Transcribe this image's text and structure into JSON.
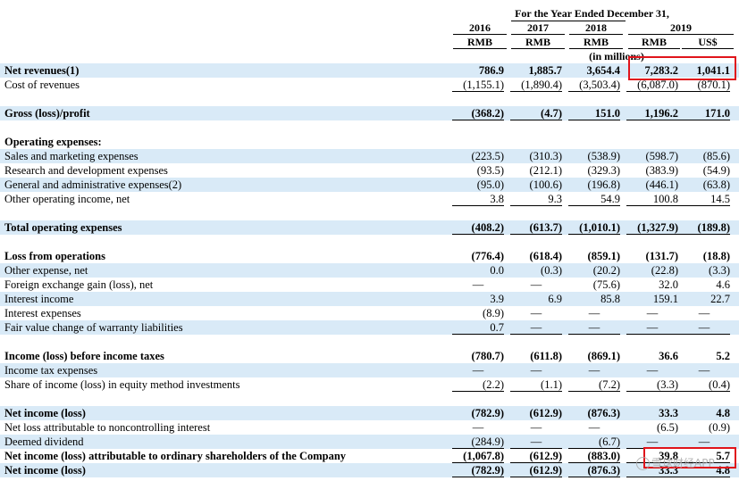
{
  "header": {
    "period_title": "For the Year Ended December 31,",
    "years": [
      "2016",
      "2017",
      "2018",
      "2019"
    ],
    "currencies": [
      "RMB",
      "RMB",
      "RMB",
      "RMB",
      "US$"
    ],
    "units": "(in millions)"
  },
  "rows": [
    {
      "label": "Net revenues(1)",
      "values": [
        "786.9",
        "1,885.7",
        "3,654.4",
        "7,283.2",
        "1,041.1"
      ],
      "bold": true,
      "shade": true,
      "underline": false
    },
    {
      "label": "Cost of revenues",
      "values": [
        "(1,155.1)",
        "(1,890.4)",
        "(3,503.4)",
        "(6,087.0)",
        "(870.1)"
      ],
      "bold": false,
      "shade": false,
      "underline": true
    },
    {
      "label": "Gross (loss)/profit",
      "values": [
        "(368.2)",
        "(4.7)",
        "151.0",
        "1,196.2",
        "171.0"
      ],
      "bold": true,
      "shade": true,
      "underline": true
    },
    {
      "label": "Operating expenses:",
      "values": [
        "",
        "",
        "",
        "",
        ""
      ],
      "bold": true,
      "shade": false,
      "underline": false
    },
    {
      "label": "Sales and marketing expenses",
      "values": [
        "(223.5)",
        "(310.3)",
        "(538.9)",
        "(598.7)",
        "(85.6)"
      ],
      "bold": false,
      "shade": true,
      "underline": false
    },
    {
      "label": "Research and development expenses",
      "values": [
        "(93.5)",
        "(212.1)",
        "(329.3)",
        "(383.9)",
        "(54.9)"
      ],
      "bold": false,
      "shade": false,
      "underline": false
    },
    {
      "label": "General and administrative expenses(2)",
      "values": [
        "(95.0)",
        "(100.6)",
        "(196.8)",
        "(446.1)",
        "(63.8)"
      ],
      "bold": false,
      "shade": true,
      "underline": false
    },
    {
      "label": "Other operating income, net",
      "values": [
        "3.8",
        "9.3",
        "54.9",
        "100.8",
        "14.5"
      ],
      "bold": false,
      "shade": false,
      "underline": true
    },
    {
      "label": "Total operating expenses",
      "values": [
        "(408.2)",
        "(613.7)",
        "(1,010.1)",
        "(1,327.9)",
        "(189.8)"
      ],
      "bold": true,
      "shade": true,
      "underline": true
    },
    {
      "label": "Loss from operations",
      "values": [
        "(776.4)",
        "(618.4)",
        "(859.1)",
        "(131.7)",
        "(18.8)"
      ],
      "bold": true,
      "shade": false,
      "underline": false
    },
    {
      "label": "Other expense, net",
      "values": [
        "0.0",
        "(0.3)",
        "(20.2)",
        "(22.8)",
        "(3.3)"
      ],
      "bold": false,
      "shade": true,
      "underline": false
    },
    {
      "label": "Foreign exchange gain (loss), net",
      "values": [
        "—",
        "—",
        "(75.6)",
        "32.0",
        "4.6"
      ],
      "bold": false,
      "shade": false,
      "underline": false
    },
    {
      "label": "Interest income",
      "values": [
        "3.9",
        "6.9",
        "85.8",
        "159.1",
        "22.7"
      ],
      "bold": false,
      "shade": true,
      "underline": false
    },
    {
      "label": "Interest expenses",
      "values": [
        "(8.9)",
        "—",
        "—",
        "—",
        "—"
      ],
      "bold": false,
      "shade": false,
      "underline": false
    },
    {
      "label": "Fair value change of warranty liabilities",
      "values": [
        "0.7",
        "—",
        "—",
        "—",
        "—"
      ],
      "bold": false,
      "shade": true,
      "underline": true
    },
    {
      "label": "Income (loss) before income taxes",
      "values": [
        "(780.7)",
        "(611.8)",
        "(869.1)",
        "36.6",
        "5.2"
      ],
      "bold": true,
      "shade": false,
      "underline": false
    },
    {
      "label": "Income tax expenses",
      "values": [
        "—",
        "—",
        "—",
        "—",
        "—"
      ],
      "bold": false,
      "shade": true,
      "underline": false
    },
    {
      "label": "Share of income (loss) in equity method investments",
      "values": [
        "(2.2)",
        "(1.1)",
        "(7.2)",
        "(3.3)",
        "(0.4)"
      ],
      "bold": false,
      "shade": false,
      "underline": true
    },
    {
      "label": "Net income (loss)",
      "values": [
        "(782.9)",
        "(612.9)",
        "(876.3)",
        "33.3",
        "4.8"
      ],
      "bold": true,
      "shade": true,
      "underline": false
    },
    {
      "label": "Net loss attributable to noncontrolling interest",
      "values": [
        "—",
        "—",
        "—",
        "(6.5)",
        "(0.9)"
      ],
      "bold": false,
      "shade": false,
      "underline": false
    },
    {
      "label": "Deemed dividend",
      "values": [
        "(284.9)",
        "—",
        "(6.7)",
        "—",
        "—"
      ],
      "bold": false,
      "shade": true,
      "underline": true
    },
    {
      "label": "Net income (loss) attributable to ordinary shareholders of the Company",
      "values": [
        "(1,067.8)",
        "(612.9)",
        "(883.0)",
        "39.8",
        "5.7"
      ],
      "bold": true,
      "shade": false,
      "underline": true
    },
    {
      "label": "Net income (loss)",
      "values": [
        "(782.9)",
        "(612.9)",
        "(876.3)",
        "33.3",
        "4.8"
      ],
      "bold": true,
      "shade": true,
      "underline": true
    }
  ],
  "watermark": "雪球财经APP",
  "colors": {
    "shade": "#d9eaf7",
    "highlight_box": "#e0141b"
  }
}
